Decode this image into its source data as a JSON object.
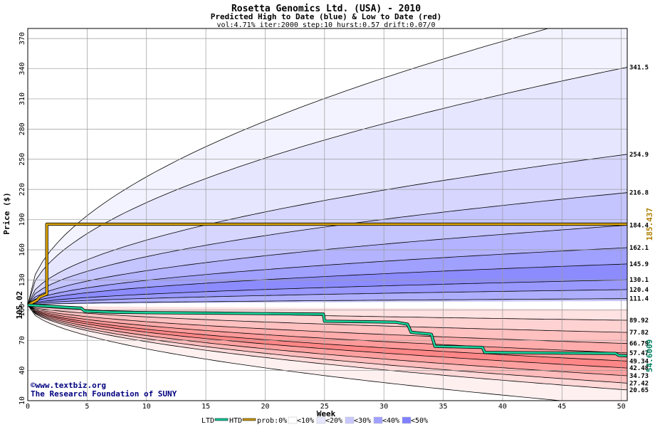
{
  "chart_data": {
    "type": "area",
    "title": "Rosetta Genomics Ltd. (USA) - 2010",
    "subtitle": "Predicted High to Date (blue) &  Low to Date (red)",
    "params": "vol:4.71% iter:2000 step:10 hurst:0.57 drift:0.07/0",
    "xlabel": "Week",
    "ylabel": "Price ($)",
    "xlim": [
      0,
      50.5
    ],
    "ylim": [
      10,
      380
    ],
    "x_ticks": [
      0,
      5,
      10,
      15,
      20,
      25,
      30,
      35,
      40,
      45,
      50
    ],
    "y_ticks": [
      10,
      40,
      70,
      100,
      130,
      160,
      190,
      220,
      250,
      280,
      310,
      340,
      370
    ],
    "grid": true,
    "start_price": 105.02,
    "start_label": "105.02",
    "high_bands": [
      {
        "end": 401,
        "label": ""
      },
      {
        "end": 341.5,
        "label": "341.5"
      },
      {
        "end": 254.9,
        "label": "254.9"
      },
      {
        "end": 216.8,
        "label": "216.8"
      },
      {
        "end": 184.4,
        "label": "184.4"
      },
      {
        "end": 162.1,
        "label": "162.1"
      },
      {
        "end": 145.9,
        "label": "145.9"
      },
      {
        "end": 130.1,
        "label": "130.1"
      },
      {
        "end": 120.4,
        "label": "120.4"
      },
      {
        "end": 111.4,
        "label": "111.4"
      }
    ],
    "low_bands": [
      {
        "end": 89.92,
        "label": "89.92"
      },
      {
        "end": 77.82,
        "label": "77.82"
      },
      {
        "end": 66.79,
        "label": "66.79"
      },
      {
        "end": 57.47,
        "label": "57.47"
      },
      {
        "end": 49.34,
        "label": "49.34"
      },
      {
        "end": 42.48,
        "label": "42.48"
      },
      {
        "end": 34.73,
        "label": "34.73"
      },
      {
        "end": 27.42,
        "label": "27.42"
      },
      {
        "end": 20.65,
        "label": "20.65"
      },
      {
        "end": 4,
        "label": ""
      }
    ],
    "htd_series": {
      "name": "HTD",
      "value": 185.437,
      "label": "185.437",
      "points": [
        [
          0,
          105
        ],
        [
          0.8,
          110
        ],
        [
          1.0,
          113
        ],
        [
          1.6,
          116
        ],
        [
          1.6,
          185.437
        ],
        [
          50.5,
          185.437
        ]
      ]
    },
    "ltd_series": {
      "name": "LTD",
      "value": 54.6009,
      "label": "54.6009",
      "points": [
        [
          0,
          105
        ],
        [
          4.5,
          102
        ],
        [
          4.8,
          99
        ],
        [
          7,
          98
        ],
        [
          10,
          97.5
        ],
        [
          16,
          97
        ],
        [
          20,
          96.5
        ],
        [
          24.9,
          96
        ],
        [
          25,
          89
        ],
        [
          28,
          88.5
        ],
        [
          31,
          88
        ],
        [
          32,
          86
        ],
        [
          32.3,
          78
        ],
        [
          34,
          76
        ],
        [
          34.3,
          64
        ],
        [
          38.3,
          63
        ],
        [
          38.5,
          58
        ],
        [
          49.5,
          57
        ],
        [
          49.8,
          55
        ],
        [
          50.5,
          54.6
        ]
      ]
    },
    "legend": [
      {
        "label": "LTD",
        "color": "#00cc99"
      },
      {
        "label": "HTD",
        "color": "#cc9900"
      },
      {
        "label": "prob:0%",
        "color": ""
      },
      {
        "label": "<10%",
        "color": "#ffffff"
      },
      {
        "label": "<20%",
        "color": "#e6e6ff"
      },
      {
        "label": "<30%",
        "color": "#c8c8ff"
      },
      {
        "label": "<40%",
        "color": "#a0a0ff"
      },
      {
        "label": "<50%",
        "color": "#8080ff"
      }
    ],
    "credit": [
      "©www.textbiz.org",
      "The Research Foundation of SUNY"
    ]
  },
  "colors": {
    "high_fills": [
      "#f3f3ff",
      "#e6e6ff",
      "#d6d6ff",
      "#c4c4ff",
      "#b3b3ff",
      "#a0a0ff",
      "#8c8cff",
      "#9898ff",
      "#aeaeff",
      "#c8c8ff"
    ],
    "low_fills": [
      "#ffe2e2",
      "#ffd2d2",
      "#ffc0c0",
      "#ffacac",
      "#ff9a9a",
      "#ff8686",
      "#ffa0a0",
      "#ffbcbc",
      "#ffd8d8",
      "#fff0f0"
    ],
    "htd": "#e0a800",
    "ltd": "#19d29a",
    "grid": "#9a9a9a",
    "htd_label": "#b08000",
    "ltd_label": "#008060"
  }
}
